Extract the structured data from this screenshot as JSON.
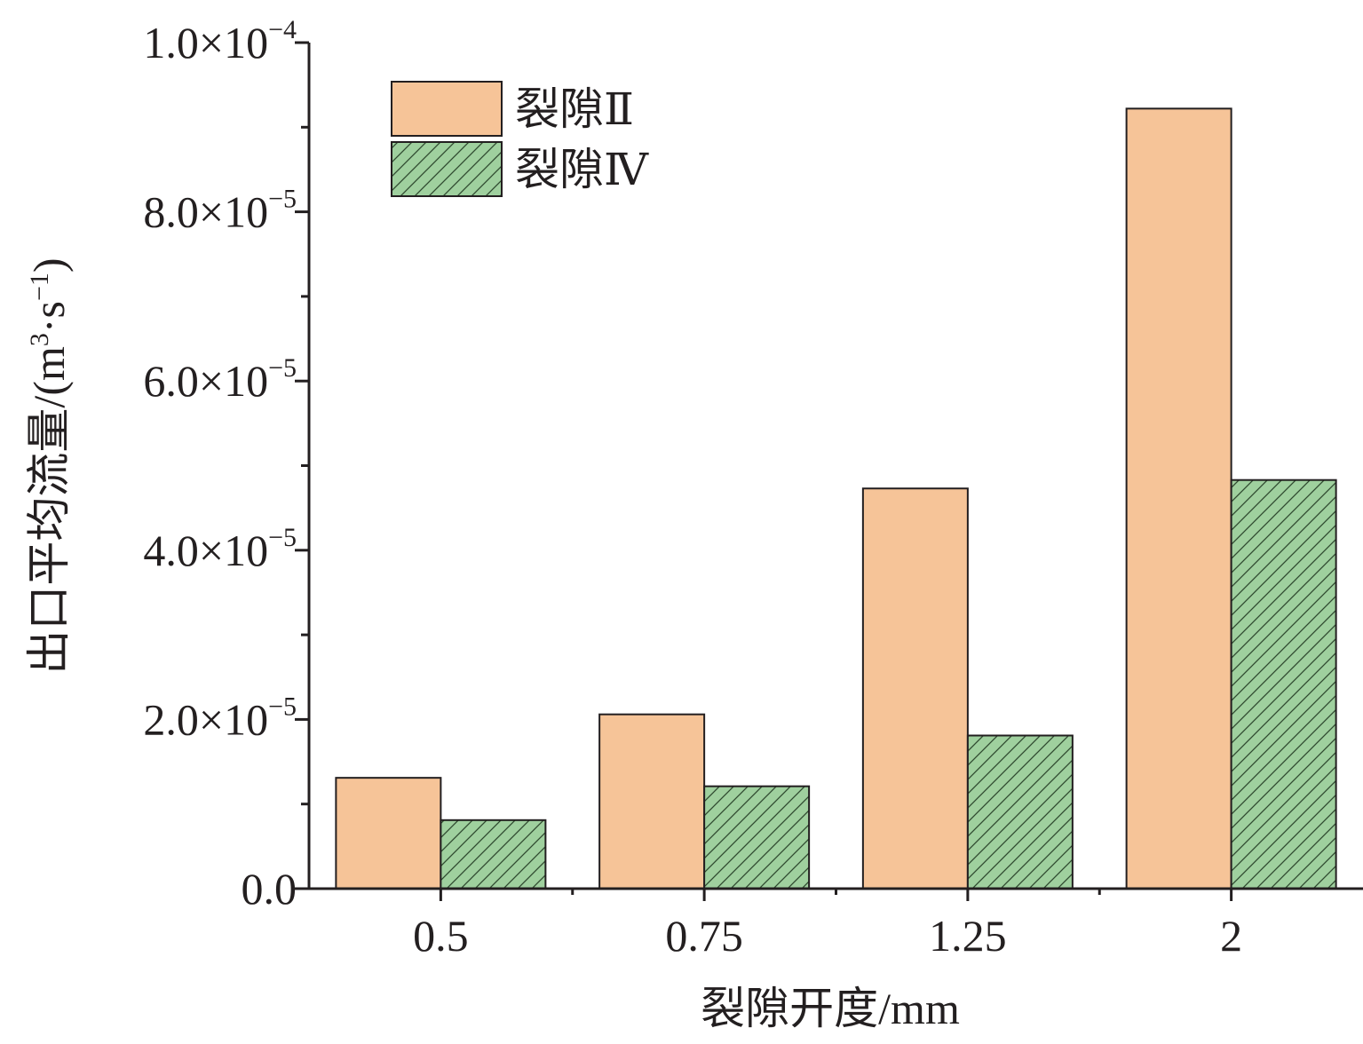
{
  "chart_data": {
    "type": "bar",
    "xlabel": "裂隙开度/mm",
    "ylabel": "出口平均流量/(m³·s⁻¹)",
    "categories": [
      "0.5",
      "0.75",
      "1.25",
      "2"
    ],
    "series": [
      {
        "name": "裂隙Ⅱ",
        "values": [
          1.31e-05,
          2.06e-05,
          4.73e-05,
          9.22e-05
        ],
        "color": "#f6c498",
        "pattern": "solid"
      },
      {
        "name": "裂隙Ⅳ",
        "values": [
          8.1e-06,
          1.21e-05,
          1.81e-05,
          4.83e-05
        ],
        "color": "#9fd09e",
        "pattern": "diagonal-hatch"
      }
    ],
    "ylim": [
      0,
      0.0001
    ],
    "yticks": [
      {
        "value": 0,
        "mantissa": "0.0",
        "exponent": ""
      },
      {
        "value": 2e-05,
        "mantissa": "2.0×10",
        "exponent": "−5"
      },
      {
        "value": 4e-05,
        "mantissa": "4.0×10",
        "exponent": "−5"
      },
      {
        "value": 6e-05,
        "mantissa": "6.0×10",
        "exponent": "−5"
      },
      {
        "value": 8e-05,
        "mantissa": "8.0×10",
        "exponent": "−5"
      },
      {
        "value": 0.0001,
        "mantissa": "1.0×10",
        "exponent": "−4"
      }
    ],
    "grid": false,
    "legend_position": "top-left"
  }
}
